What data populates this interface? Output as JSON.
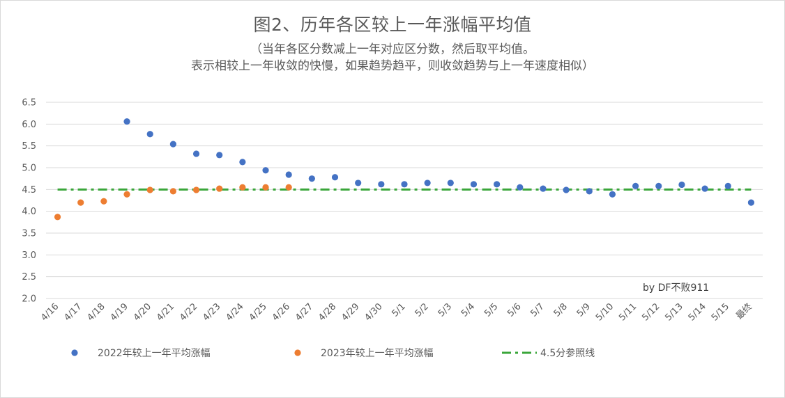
{
  "chart_data": {
    "type": "scatter",
    "title": "图2、历年各区较上一年涨幅平均值",
    "subtitle": [
      "（当年各区分数减上一年对应区分数，然后取平均值。",
      "表示相较上一年收敛的快慢，如果趋势趋平，则收敛趋势与上一年速度相似）"
    ],
    "categories": [
      "4/16",
      "4/17",
      "4/18",
      "4/19",
      "4/20",
      "4/21",
      "4/22",
      "4/23",
      "4/24",
      "4/25",
      "4/26",
      "4/27",
      "4/28",
      "4/29",
      "4/30",
      "5/1",
      "5/2",
      "5/3",
      "5/4",
      "5/5",
      "5/6",
      "5/7",
      "5/8",
      "5/9",
      "5/10",
      "5/11",
      "5/12",
      "5/13",
      "5/14",
      "5/15",
      "最终"
    ],
    "y_ticks": [
      "6.5",
      "6.0",
      "5.5",
      "5.0",
      "4.5",
      "4.0",
      "3.5",
      "3.0",
      "2.5",
      "2.0"
    ],
    "ylim": [
      2.0,
      6.5
    ],
    "grid": true,
    "legend_position": "bottom",
    "series": [
      {
        "name": "2022年较上一年平均涨幅",
        "color": "#4472c4",
        "values": [
          null,
          null,
          null,
          6.06,
          5.77,
          5.54,
          5.32,
          5.29,
          5.13,
          4.94,
          4.84,
          4.75,
          4.78,
          4.65,
          4.62,
          4.62,
          4.65,
          4.65,
          4.62,
          4.62,
          4.55,
          4.52,
          4.49,
          4.46,
          4.39,
          4.58,
          4.58,
          4.61,
          4.52,
          4.58,
          4.2
        ]
      },
      {
        "name": "2023年较上一年平均涨幅",
        "color": "#ed7d31",
        "values": [
          3.87,
          4.2,
          4.23,
          4.39,
          4.49,
          4.46,
          4.49,
          4.52,
          4.55,
          4.55,
          4.55,
          null,
          null,
          null,
          null,
          null,
          null,
          null,
          null,
          null,
          null,
          null,
          null,
          null,
          null,
          null,
          null,
          null,
          null,
          null,
          null
        ]
      },
      {
        "name": "4.5分参照线",
        "color": "#3aa63a",
        "line_style": "dash-dot",
        "values": [
          4.5,
          4.5,
          4.5,
          4.5,
          4.5,
          4.5,
          4.5,
          4.5,
          4.5,
          4.5,
          4.5,
          4.5,
          4.5,
          4.5,
          4.5,
          4.5,
          4.5,
          4.5,
          4.5,
          4.5,
          4.5,
          4.5,
          4.5,
          4.5,
          4.5,
          4.5,
          4.5,
          4.5,
          4.5,
          4.5,
          4.5
        ]
      }
    ],
    "annotation": "by DF不败911"
  }
}
